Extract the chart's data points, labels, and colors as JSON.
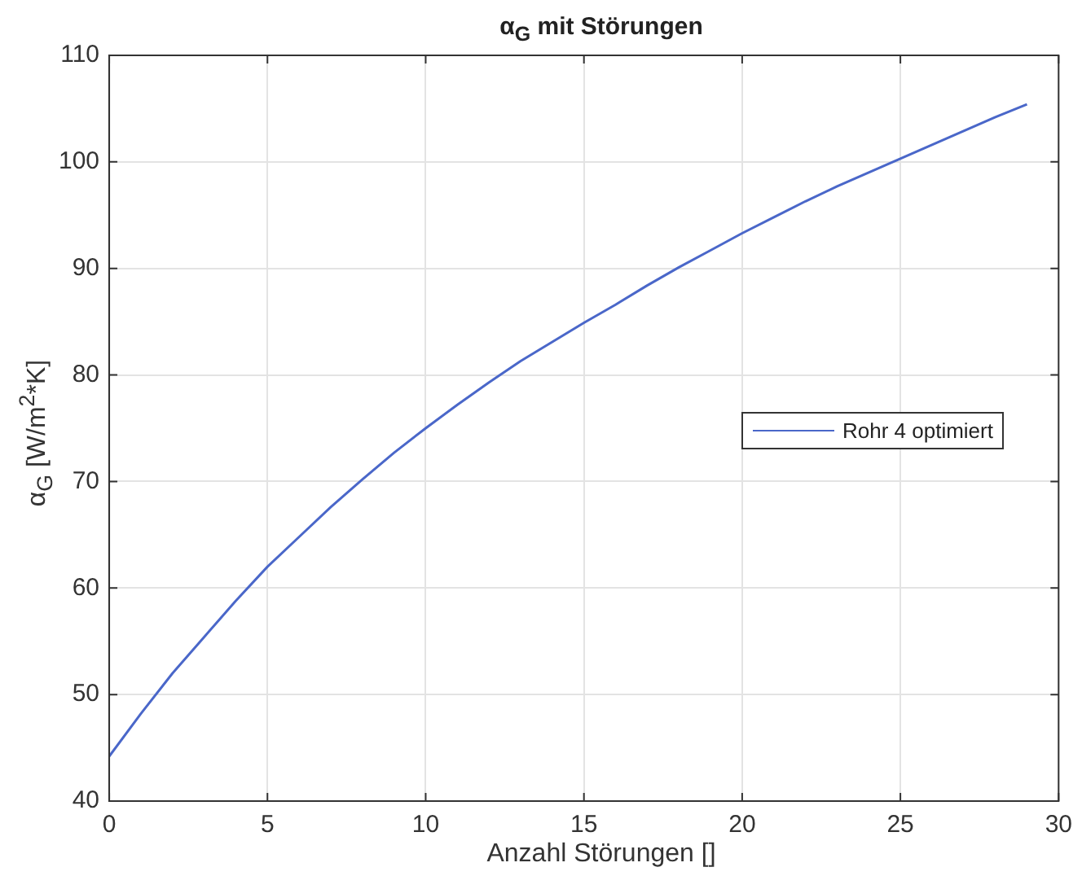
{
  "chart_data": {
    "type": "line",
    "title": "α$_{G}$ mit Störungen",
    "xlabel": "Anzahl Störungen []",
    "ylabel": "α$_{G}$ [W/m$^{2}$*K]",
    "x": [
      0,
      1,
      2,
      3,
      4,
      5,
      6,
      7,
      8,
      9,
      10,
      11,
      12,
      13,
      14,
      15,
      16,
      17,
      18,
      19,
      20,
      21,
      22,
      23,
      24,
      25,
      26,
      27,
      28,
      29
    ],
    "series": [
      {
        "name": "Rohr 4 optimiert",
        "color": "#4a67c9",
        "values": [
          44.2,
          48.2,
          52,
          55.4,
          58.8,
          62,
          64.8,
          67.6,
          70.2,
          72.7,
          75,
          77.2,
          79.3,
          81.3,
          83.1,
          84.9,
          86.6,
          88.4,
          90.1,
          91.7,
          93.3,
          94.8,
          96.3,
          97.7,
          99.0,
          100.3,
          101.6,
          102.9,
          104.2,
          105.4
        ]
      }
    ],
    "xlim": [
      0,
      30
    ],
    "xticks": [
      0,
      5,
      10,
      15,
      20,
      25,
      30
    ],
    "ylim": [
      40,
      110
    ],
    "yticks": [
      40,
      50,
      60,
      70,
      80,
      90,
      100,
      110
    ],
    "grid": true,
    "legend": "right",
    "marker": "none",
    "line_style": "solid"
  }
}
